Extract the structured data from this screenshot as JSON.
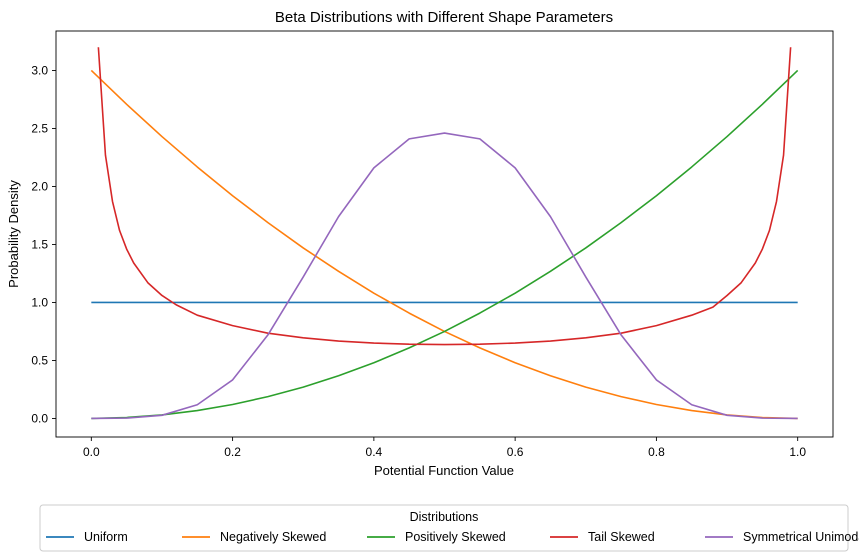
{
  "chart_data": {
    "type": "line",
    "title": "Beta Distributions with Different Shape Parameters",
    "xlabel": "Potential Function Value",
    "ylabel": "Probability Density",
    "xlim": [
      -0.05,
      1.05
    ],
    "ylim": [
      -0.16,
      3.34
    ],
    "xticks": [
      0.0,
      0.2,
      0.4,
      0.6,
      0.8,
      1.0
    ],
    "xtick_labels": [
      "0.0",
      "0.2",
      "0.4",
      "0.6",
      "0.8",
      "1.0"
    ],
    "yticks": [
      0.0,
      0.5,
      1.0,
      1.5,
      2.0,
      2.5,
      3.0
    ],
    "ytick_labels": [
      "0.0",
      "0.5",
      "1.0",
      "1.5",
      "2.0",
      "2.5",
      "3.0"
    ],
    "grid": false,
    "legend": {
      "title": "Distributions",
      "placement": "bottom-center-outside",
      "ncol": 5
    },
    "series": [
      {
        "name": "Uniform",
        "color": "#1f77b4",
        "x": [
          0.0,
          0.1,
          0.2,
          0.3,
          0.4,
          0.5,
          0.6,
          0.7,
          0.8,
          0.9,
          1.0
        ],
        "y": [
          1.0,
          1.0,
          1.0,
          1.0,
          1.0,
          1.0,
          1.0,
          1.0,
          1.0,
          1.0,
          1.0
        ]
      },
      {
        "name": "Negatively Skewed",
        "color": "#ff7f0e",
        "x": [
          0.0,
          0.05,
          0.1,
          0.15,
          0.2,
          0.25,
          0.3,
          0.35,
          0.4,
          0.45,
          0.5,
          0.55,
          0.6,
          0.65,
          0.7,
          0.75,
          0.8,
          0.85,
          0.9,
          0.95,
          1.0
        ],
        "y": [
          3.0,
          2.708,
          2.43,
          2.168,
          1.92,
          1.688,
          1.47,
          1.268,
          1.08,
          0.908,
          0.75,
          0.608,
          0.48,
          0.368,
          0.27,
          0.188,
          0.12,
          0.068,
          0.03,
          0.008,
          0.0
        ]
      },
      {
        "name": "Positively Skewed",
        "color": "#2ca02c",
        "x": [
          0.0,
          0.05,
          0.1,
          0.15,
          0.2,
          0.25,
          0.3,
          0.35,
          0.4,
          0.45,
          0.5,
          0.55,
          0.6,
          0.65,
          0.7,
          0.75,
          0.8,
          0.85,
          0.9,
          0.95,
          1.0
        ],
        "y": [
          0.0,
          0.008,
          0.03,
          0.068,
          0.12,
          0.188,
          0.27,
          0.368,
          0.48,
          0.608,
          0.75,
          0.908,
          1.08,
          1.268,
          1.47,
          1.688,
          1.92,
          2.168,
          2.43,
          2.708,
          3.0
        ]
      },
      {
        "name": "Tail Skewed",
        "color": "#d62728",
        "x": [
          0.01,
          0.02,
          0.03,
          0.04,
          0.05,
          0.06,
          0.08,
          0.1,
          0.12,
          0.15,
          0.2,
          0.25,
          0.3,
          0.35,
          0.4,
          0.45,
          0.5,
          0.55,
          0.6,
          0.65,
          0.7,
          0.75,
          0.8,
          0.85,
          0.88,
          0.9,
          0.92,
          0.94,
          0.95,
          0.96,
          0.97,
          0.98,
          0.99
        ],
        "y": [
          3.2,
          2.27,
          1.87,
          1.62,
          1.46,
          1.34,
          1.17,
          1.06,
          0.98,
          0.89,
          0.8,
          0.735,
          0.695,
          0.667,
          0.65,
          0.64,
          0.637,
          0.64,
          0.65,
          0.667,
          0.695,
          0.735,
          0.8,
          0.89,
          0.96,
          1.06,
          1.17,
          1.34,
          1.46,
          1.62,
          1.87,
          2.27,
          3.2
        ]
      },
      {
        "name": "Symmetrical Unimodal",
        "color": "#9467bd",
        "x": [
          0.0,
          0.05,
          0.1,
          0.15,
          0.2,
          0.25,
          0.3,
          0.35,
          0.4,
          0.45,
          0.5,
          0.55,
          0.6,
          0.65,
          0.7,
          0.75,
          0.8,
          0.85,
          0.9,
          0.95,
          1.0
        ],
        "y": [
          0.0,
          0.003,
          0.027,
          0.118,
          0.332,
          0.72,
          1.22,
          1.74,
          2.16,
          2.41,
          2.46,
          2.41,
          2.16,
          1.74,
          1.22,
          0.72,
          0.332,
          0.118,
          0.027,
          0.003,
          0.0
        ]
      }
    ]
  }
}
